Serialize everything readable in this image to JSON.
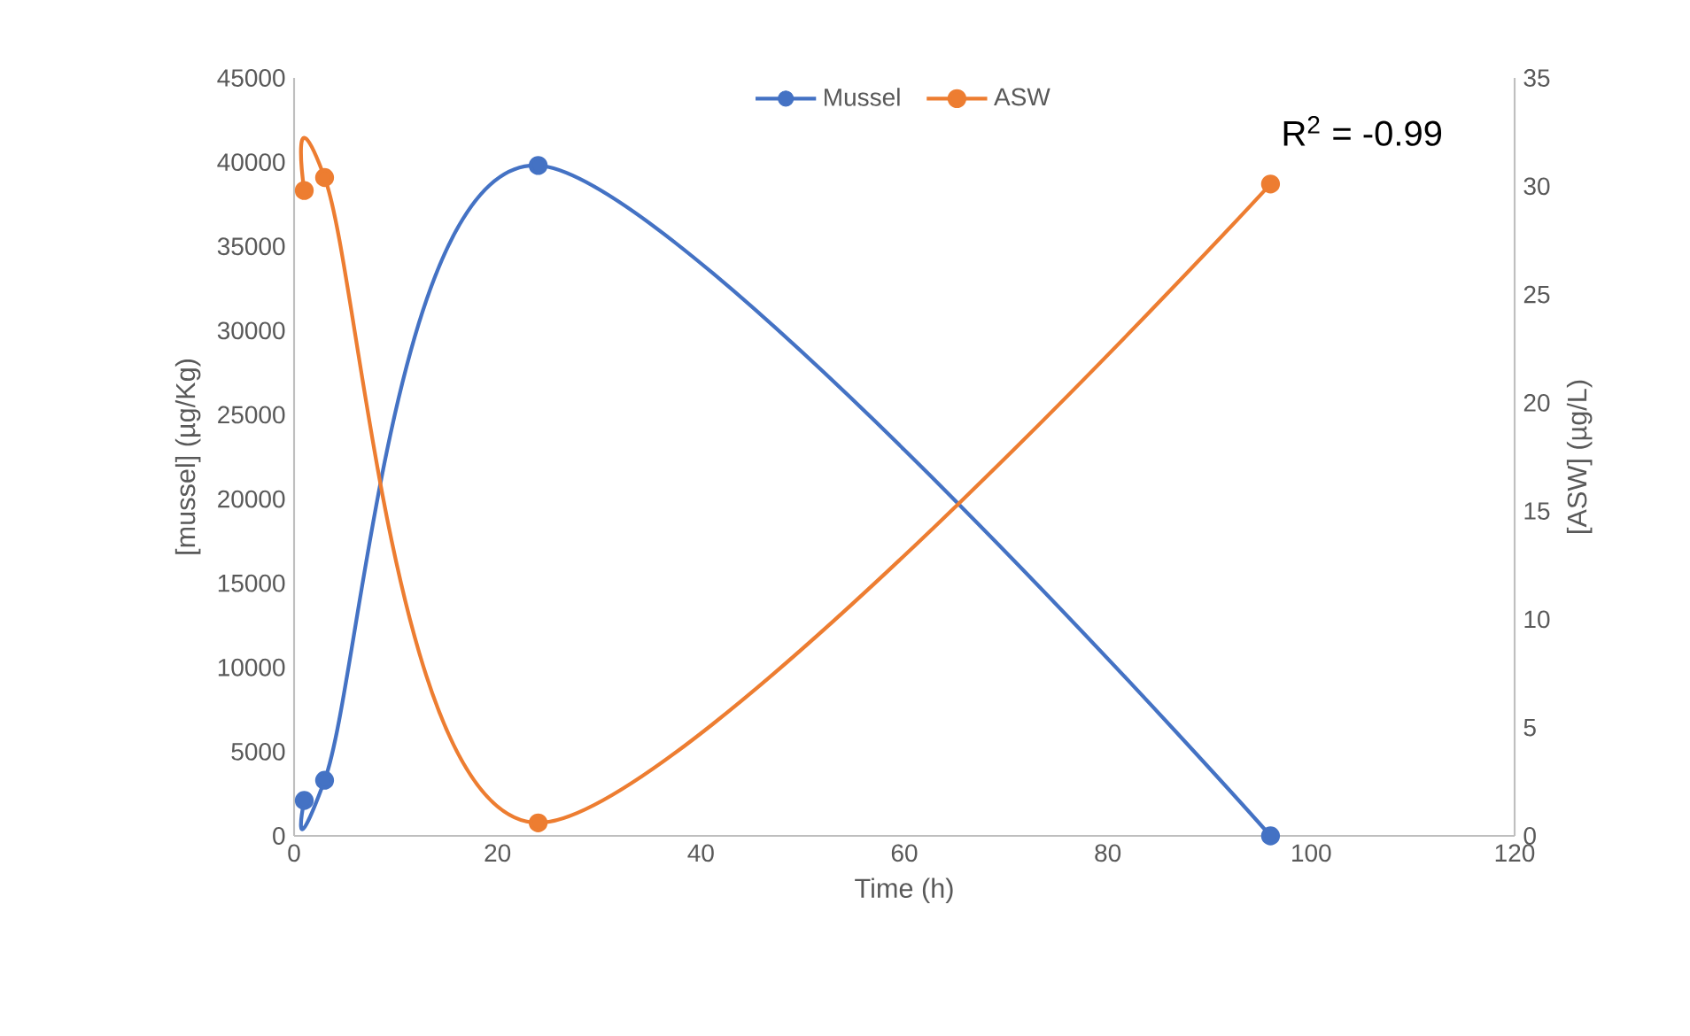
{
  "chart_data": {
    "type": "line",
    "xlabel": "Time (h)",
    "ylabel": "[mussel] (µg/Kg)",
    "y2label": "[ASW] (µg/L)",
    "series": [
      {
        "name": "Mussel",
        "color": "#4472c4",
        "x": [
          1,
          3,
          24,
          96
        ],
        "values": [
          2100,
          3300,
          39800,
          0
        ]
      },
      {
        "name": "ASW",
        "color": "#ed7d31",
        "axis": "y2",
        "x": [
          1,
          3,
          24,
          96
        ],
        "values": [
          29.8,
          30.4,
          0.6,
          30.1
        ]
      }
    ],
    "xlim": [
      0,
      120
    ],
    "xticks": [
      0,
      20,
      40,
      60,
      80,
      100,
      120
    ],
    "ylim": [
      0,
      45000
    ],
    "yticks": [
      0,
      5000,
      10000,
      15000,
      20000,
      25000,
      30000,
      35000,
      40000,
      45000
    ],
    "y2lim": [
      0,
      35
    ],
    "y2ticks": [
      0,
      5,
      10,
      15,
      20,
      25,
      30,
      35
    ],
    "annotations": [
      "R$^{2}$ = -0.99"
    ],
    "marker": "circle",
    "line_style": "solid",
    "legend": "top",
    "grid": false
  }
}
